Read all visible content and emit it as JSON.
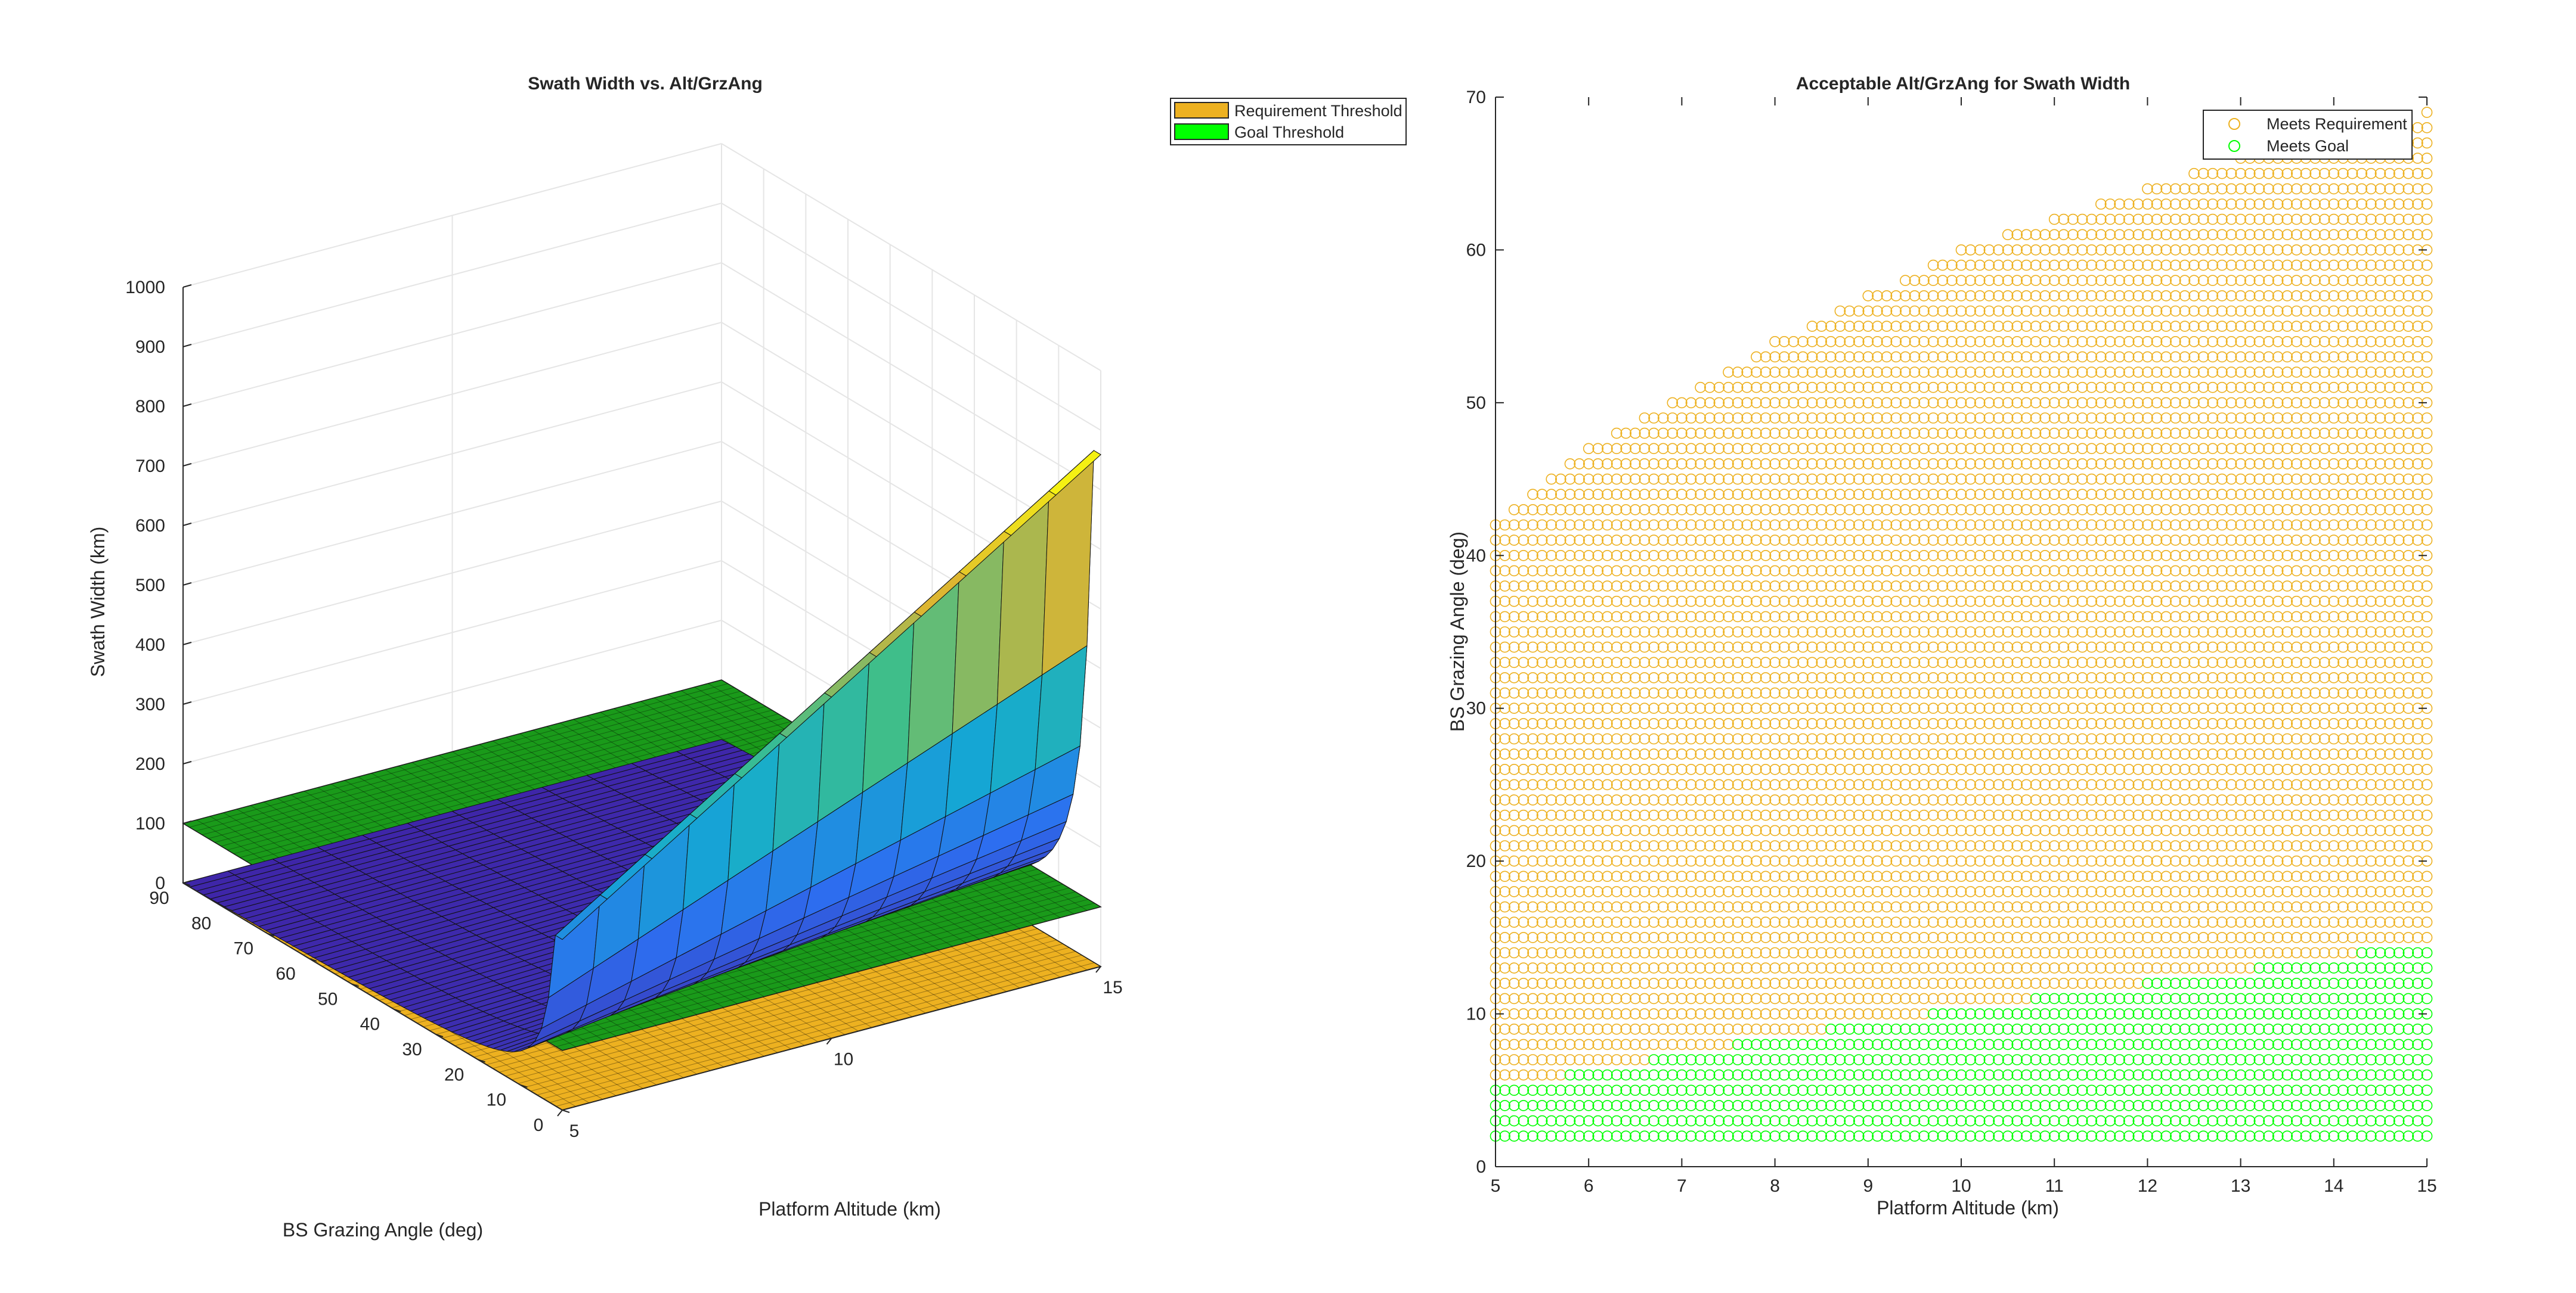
{
  "colors": {
    "requirement": "#EDB120",
    "goal": "#00FF00",
    "goal_plane": "#1a9a1a",
    "axis": "#262626",
    "grid": "#e5e5e5"
  },
  "chart_data": [
    {
      "type": "surface",
      "title": "Swath Width vs. Alt/GrzAng",
      "xlabel": "Platform Altitude (km)",
      "ylabel": "BS Grazing Angle (deg)",
      "zlabel": "Swath Width (km)",
      "xlim": [
        5,
        15
      ],
      "ylim": [
        0,
        90
      ],
      "zlim": [
        0,
        1000
      ],
      "xticks": [
        "5",
        "10",
        "15"
      ],
      "yticks": [
        "0",
        "10",
        "20",
        "30",
        "40",
        "50",
        "60",
        "70",
        "80",
        "90"
      ],
      "zticks": [
        "0",
        "100",
        "200",
        "300",
        "400",
        "500",
        "600",
        "700",
        "800",
        "900",
        "1000"
      ],
      "grid": true,
      "legend_position": "top-right",
      "legend": [
        "Requirement Threshold",
        "Goal Threshold"
      ],
      "requirement_threshold_z": 0,
      "goal_threshold_z": 100,
      "surface_formula": "swath = 2 * altitude / tan(grazing angle)",
      "surface_peak_z": 859
    },
    {
      "type": "scatter",
      "title": "Acceptable Alt/GrzAng for Swath Width",
      "xlabel": "Platform Altitude (km)",
      "ylabel": "BS Grazing Angle (deg)",
      "xlim": [
        5,
        15
      ],
      "ylim": [
        0,
        70
      ],
      "xticks": [
        "5",
        "6",
        "7",
        "8",
        "9",
        "10",
        "11",
        "12",
        "13",
        "14",
        "15"
      ],
      "yticks": [
        "0",
        "10",
        "20",
        "30",
        "40",
        "50",
        "60",
        "70"
      ],
      "grid": false,
      "legend_position": "top-right",
      "series": [
        {
          "name": "Meets Requirement",
          "color": "#EDB120",
          "marker": "circle",
          "boundary_x": [
            5,
            6,
            7,
            8,
            9,
            10,
            11,
            12,
            13,
            14,
            15
          ],
          "boundary_ymax": [
            42,
            47,
            50.5,
            54,
            57,
            60,
            62,
            64,
            66,
            67.5,
            69
          ]
        },
        {
          "name": "Meets Goal",
          "color": "#00FF00",
          "marker": "circle",
          "boundary_x": [
            5,
            6,
            7,
            8,
            9,
            10,
            11,
            12,
            13,
            14,
            15
          ],
          "boundary_ymax": [
            5,
            6.3,
            7.4,
            8.4,
            9.4,
            10.3,
            11.2,
            12,
            12.9,
            13.8,
            14.6
          ]
        }
      ]
    }
  ]
}
